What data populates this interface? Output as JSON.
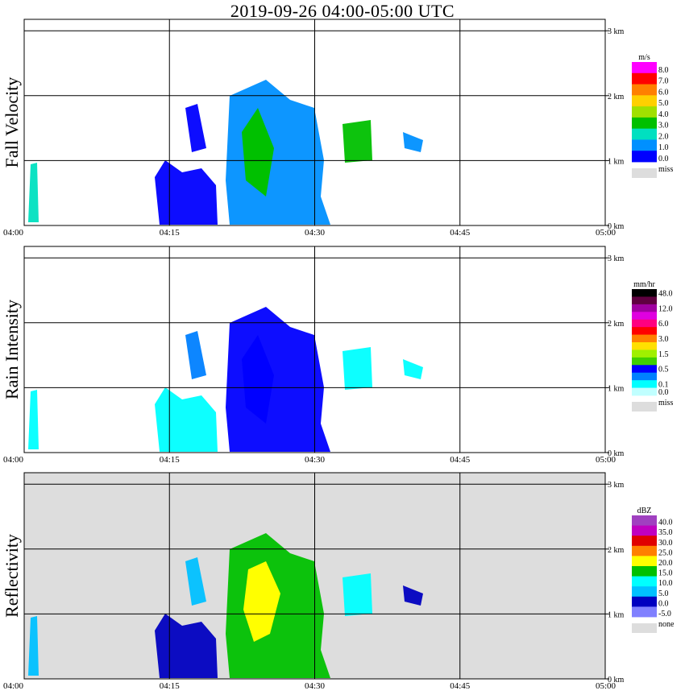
{
  "title": "2019-09-26   04:00-05:00 UTC",
  "colors": {
    "miss": "#dddddd",
    "grid": "#000000",
    "blank": "#ffffff"
  },
  "chart_data": [
    {
      "type": "heatmap",
      "ylabel": "Fall Velocity",
      "time_ticks": [
        "04:00",
        "04:15",
        "04:30",
        "04:45",
        "05:00"
      ],
      "height_ticks": [
        "0 km",
        "1 km",
        "2 km",
        "3 km"
      ],
      "xlim": [
        "04:00",
        "05:00"
      ],
      "ylim_km": [
        0,
        3.1
      ],
      "background": "#ffffff",
      "colorbar": {
        "unit": "m/s",
        "labels": [
          "8.0",
          "7.0",
          "6.0",
          "5.0",
          "4.0",
          "3.0",
          "2.0",
          "1.0",
          "0.0"
        ],
        "colors": [
          "#ff00ff",
          "#ff0000",
          "#ff8000",
          "#ffd000",
          "#a0e000",
          "#00c000",
          "#00e0c0",
          "#0090ff",
          "#0000ff"
        ],
        "miss_label": "miss"
      }
    },
    {
      "type": "heatmap",
      "ylabel": "Rain Intensity",
      "time_ticks": [
        "04:00",
        "04:15",
        "04:30",
        "04:45",
        "05:00"
      ],
      "height_ticks": [
        "0 km",
        "1 km",
        "2 km",
        "3 km"
      ],
      "xlim": [
        "04:00",
        "05:00"
      ],
      "ylim_km": [
        0,
        3.1
      ],
      "background": "#ffffff",
      "colorbar": {
        "unit": "mm/hr",
        "labels": [
          "48.0",
          "",
          "12.0",
          "",
          "6.0",
          "",
          "3.0",
          "",
          "1.5",
          "",
          "0.5",
          "",
          "0.1",
          "0.0"
        ],
        "colors": [
          "#000000",
          "#600040",
          "#a000a0",
          "#e000e0",
          "#ff0080",
          "#ff0000",
          "#ff8000",
          "#ffe000",
          "#a0f000",
          "#40d000",
          "#0000ff",
          "#0080ff",
          "#00ffff",
          "#c0ffff"
        ],
        "miss_label": "miss"
      }
    },
    {
      "type": "heatmap",
      "ylabel": "Reflectivity",
      "time_ticks": [
        "04:00",
        "04:15",
        "04:30",
        "04:45",
        "05:00"
      ],
      "height_ticks": [
        "0 km",
        "1 km",
        "2 km",
        "3 km"
      ],
      "xlim": [
        "04:00",
        "05:00"
      ],
      "ylim_km": [
        0,
        3.1
      ],
      "background": "#dddddd",
      "colorbar": {
        "unit": "dBZ",
        "labels": [
          "40.0",
          "35.0",
          "30.0",
          "25.0",
          "20.0",
          "15.0",
          "10.0",
          "5.0",
          "0.0",
          "-5.0"
        ],
        "colors": [
          "#a040c0",
          "#c000c0",
          "#e00000",
          "#ff8000",
          "#ffff00",
          "#00c000",
          "#00ffff",
          "#00c0ff",
          "#0000c0",
          "#8080ff"
        ],
        "miss_label": "none"
      }
    }
  ]
}
